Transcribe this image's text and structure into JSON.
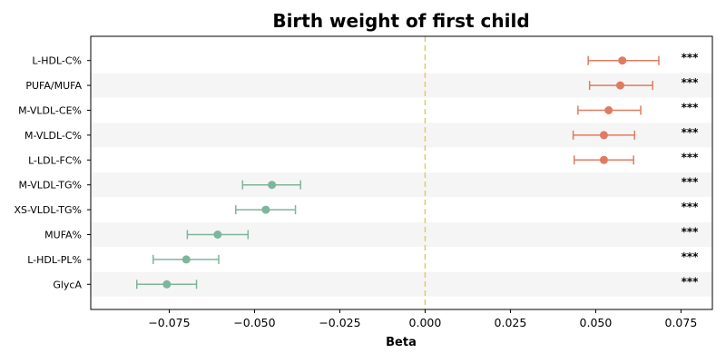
{
  "chart_data": {
    "type": "forest",
    "title": "Birth weight of first child",
    "xlabel": "Beta",
    "ylabel": "",
    "xlim": [
      -0.098,
      0.0842
    ],
    "x_ticks": [
      -0.075,
      -0.05,
      -0.025,
      0.0,
      0.025,
      0.05,
      0.075
    ],
    "x_tick_labels": [
      "−0.075",
      "−0.050",
      "−0.025",
      "0.000",
      "0.025",
      "0.050",
      "0.075"
    ],
    "reference_line": 0.0,
    "grid": false,
    "legend": "none",
    "colors": {
      "positive": "#E07B62",
      "negative": "#7FB59B",
      "reference": "#E9C46A",
      "band": "#f5f5f5"
    },
    "rows": [
      {
        "label": "L-HDL-C%",
        "beta": 0.0578,
        "low": 0.0478,
        "high": 0.0685,
        "sig": "***"
      },
      {
        "label": "PUFA/MUFA",
        "beta": 0.0572,
        "low": 0.0482,
        "high": 0.0667,
        "sig": "***"
      },
      {
        "label": "M-VLDL-CE%",
        "beta": 0.0538,
        "low": 0.0448,
        "high": 0.0632,
        "sig": "***"
      },
      {
        "label": "M-VLDL-C%",
        "beta": 0.0524,
        "low": 0.0434,
        "high": 0.0614,
        "sig": "***"
      },
      {
        "label": "L-LDL-FC%",
        "beta": 0.0524,
        "low": 0.0437,
        "high": 0.0611,
        "sig": "***"
      },
      {
        "label": "M-VLDL-TG%",
        "beta": -0.0449,
        "low": -0.0535,
        "high": -0.0365,
        "sig": "***"
      },
      {
        "label": "XS-VLDL-TG%",
        "beta": -0.0467,
        "low": -0.0555,
        "high": -0.038,
        "sig": "***"
      },
      {
        "label": "MUFA%",
        "beta": -0.0608,
        "low": -0.0697,
        "high": -0.0519,
        "sig": "***"
      },
      {
        "label": "L-HDL-PL%",
        "beta": -0.07,
        "low": -0.0797,
        "high": -0.0605,
        "sig": "***"
      },
      {
        "label": "GlycA",
        "beta": -0.0757,
        "low": -0.0845,
        "high": -0.067,
        "sig": "***"
      }
    ]
  }
}
